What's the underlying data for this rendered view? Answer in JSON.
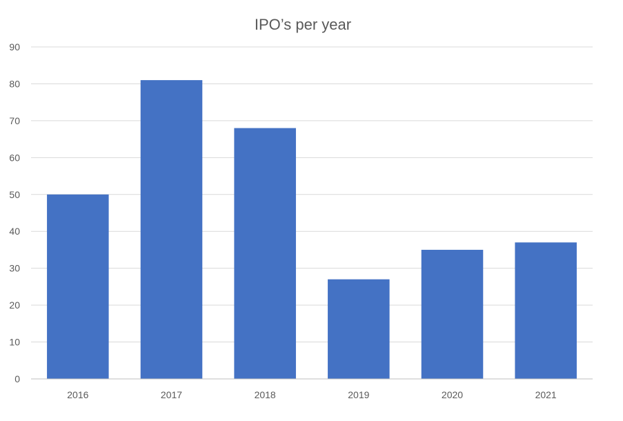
{
  "chart_data": {
    "type": "bar",
    "title": "IPO’s per year",
    "categories": [
      "2016",
      "2017",
      "2018",
      "2019",
      "2020",
      "2021"
    ],
    "values": [
      50,
      81,
      68,
      27,
      35,
      37
    ],
    "ylim": [
      0,
      90
    ],
    "yticks": [
      0,
      10,
      20,
      30,
      40,
      50,
      60,
      70,
      80,
      90
    ],
    "grid": true,
    "legend": "none",
    "colors": {
      "bar": "#4472C4"
    }
  }
}
